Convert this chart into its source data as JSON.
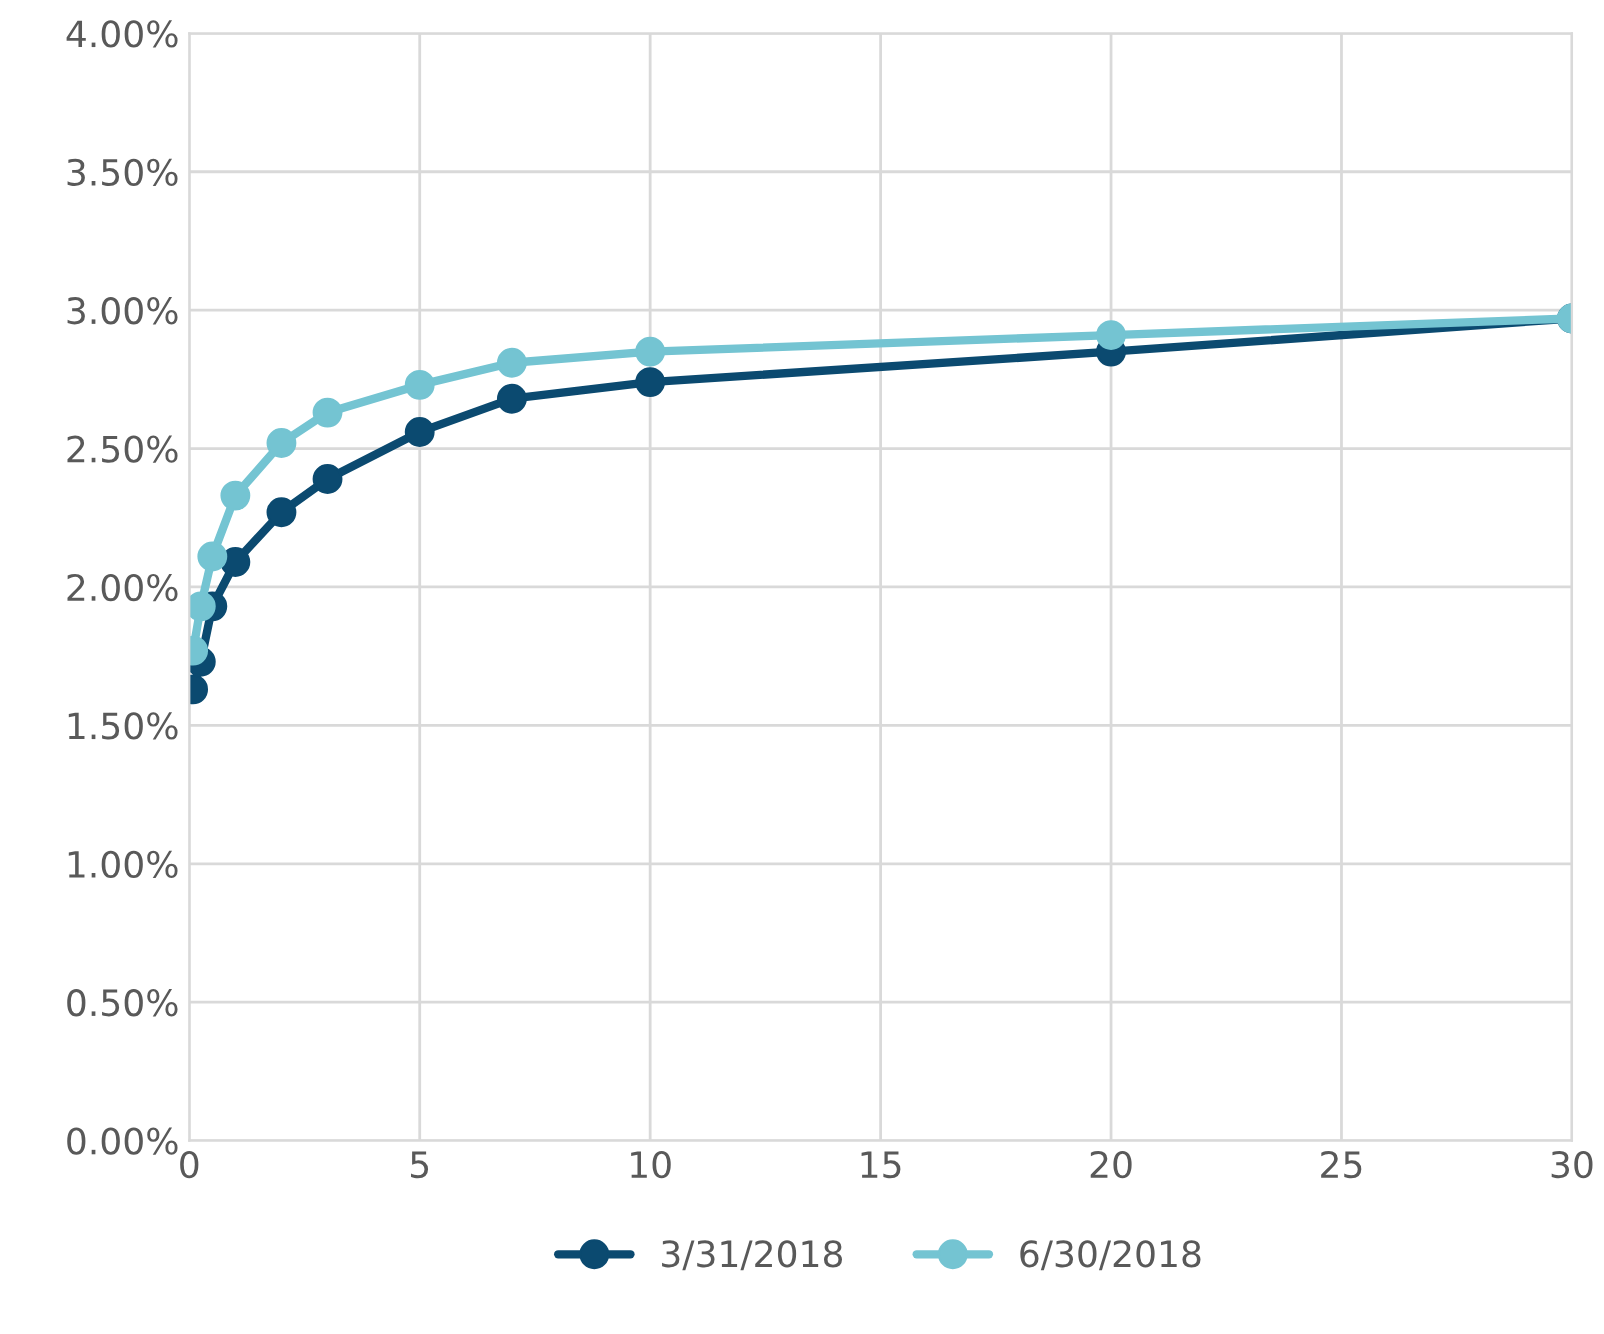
{
  "chart_data": {
    "type": "line",
    "series": [
      {
        "name": "3/31/2018",
        "color": "#0b4a70",
        "x": [
          0.083,
          0.25,
          0.5,
          1,
          2,
          3,
          5,
          7,
          10,
          20,
          30
        ],
        "values": [
          1.63,
          1.73,
          1.93,
          2.09,
          2.27,
          2.39,
          2.56,
          2.68,
          2.74,
          2.85,
          2.97
        ]
      },
      {
        "name": "6/30/2018",
        "color": "#74c4d2",
        "x": [
          0.083,
          0.25,
          0.5,
          1,
          2,
          3,
          5,
          7,
          10,
          20,
          30
        ],
        "values": [
          1.77,
          1.93,
          2.11,
          2.33,
          2.52,
          2.63,
          2.73,
          2.81,
          2.85,
          2.91,
          2.97
        ]
      }
    ],
    "xlim": [
      0,
      30
    ],
    "xticks": [
      0,
      5,
      10,
      15,
      20,
      25,
      30
    ],
    "ylim": [
      0,
      4
    ],
    "yticks": [
      {
        "value": 0,
        "label": "0.00%"
      },
      {
        "value": 0.5,
        "label": "0.50%"
      },
      {
        "value": 1,
        "label": "1.00%"
      },
      {
        "value": 1.5,
        "label": "1.50%"
      },
      {
        "value": 2,
        "label": "2.00%"
      },
      {
        "value": 2.5,
        "label": "2.50%"
      },
      {
        "value": 3,
        "label": "3.00%"
      },
      {
        "value": 3.5,
        "label": "3.50%"
      },
      {
        "value": 4,
        "label": "4.00%"
      }
    ],
    "grid": true,
    "legend": "bottom",
    "marker": "circle",
    "line_style": "solid"
  }
}
